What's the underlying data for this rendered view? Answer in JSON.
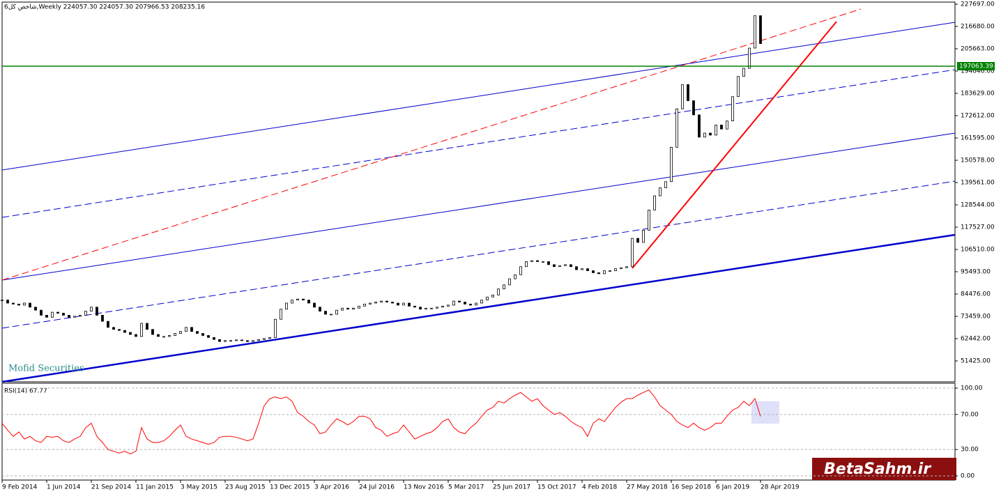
{
  "chart_data": [
    {
      "type": "candlestick",
      "title": "شاخص کل6,Weekly  224057.30 224057.30 207966.53 208235.16",
      "annotation": "Mofid Securities",
      "watermark": "BetaSahm.ir",
      "up_color": "#ffffff",
      "down_color": "#000000",
      "edge_color": "#000000",
      "hline": {
        "value": 197063.39,
        "label": "197063.39",
        "color": "#008000"
      },
      "categories": [
        "9 Feb 2014",
        null,
        null,
        null,
        null,
        null,
        null,
        null,
        "1 Jun 2014",
        null,
        null,
        null,
        null,
        null,
        null,
        null,
        "21 Sep 2014",
        null,
        null,
        null,
        null,
        null,
        null,
        null,
        "11 Jan 2015",
        null,
        null,
        null,
        null,
        null,
        null,
        null,
        "3 May 2015",
        null,
        null,
        null,
        null,
        null,
        null,
        null,
        "23 Aug 2015",
        null,
        null,
        null,
        null,
        null,
        null,
        null,
        "13 Dec 2015",
        null,
        null,
        null,
        null,
        null,
        null,
        null,
        "3 Apr 2016",
        null,
        null,
        null,
        null,
        null,
        null,
        null,
        "24 Jul 2016",
        null,
        null,
        null,
        null,
        null,
        null,
        null,
        "13 Nov 2016",
        null,
        null,
        null,
        null,
        null,
        null,
        null,
        "5 Mar 2017",
        null,
        null,
        null,
        null,
        null,
        null,
        null,
        "25 Jun 2017",
        null,
        null,
        null,
        null,
        null,
        null,
        null,
        "15 Oct 2017",
        null,
        null,
        null,
        null,
        null,
        null,
        null,
        "4 Feb 2018",
        null,
        null,
        null,
        null,
        null,
        null,
        null,
        "27 May 2018",
        null,
        null,
        null,
        null,
        null,
        null,
        null,
        "16 Sep 2018",
        null,
        null,
        null,
        null,
        null,
        null,
        null,
        "6 Jan 2019",
        null,
        null,
        null,
        null,
        null,
        null,
        null,
        "28 Apr 2019"
      ],
      "values": [
        81500,
        80000,
        79500,
        79000,
        80000,
        78000,
        76500,
        74000,
        73000,
        75500,
        75000,
        74000,
        73000,
        73500,
        74000,
        76000,
        78000,
        74000,
        71000,
        68000,
        67000,
        66500,
        65500,
        64500,
        63500,
        70000,
        67000,
        64500,
        63500,
        63500,
        64000,
        65000,
        66000,
        68000,
        66000,
        65000,
        64000,
        63000,
        62000,
        61000,
        61500,
        61500,
        61800,
        61500,
        61000,
        61500,
        62000,
        62500,
        63000,
        72000,
        77000,
        80000,
        81500,
        82000,
        81500,
        80000,
        78000,
        76000,
        74500,
        74500,
        76500,
        77500,
        77000,
        77500,
        78500,
        79500,
        80000,
        80500,
        81000,
        80500,
        80000,
        79000,
        80000,
        78500,
        78000,
        77000,
        77500,
        77500,
        78000,
        78500,
        79000,
        81000,
        80500,
        79500,
        79000,
        80000,
        81500,
        83000,
        84000,
        87000,
        89000,
        92000,
        94000,
        98000,
        100500,
        101000,
        100500,
        100500,
        99000,
        98000,
        98500,
        99000,
        98000,
        96500,
        97000,
        96000,
        95000,
        94500,
        96000,
        96000,
        97000,
        97500,
        98000,
        112000,
        110000,
        116000,
        126000,
        133000,
        137000,
        140000,
        157000,
        176000,
        188000,
        180000,
        173000,
        162000,
        164000,
        163000,
        168000,
        166000,
        170000,
        182000,
        192000,
        196000,
        206000,
        222000,
        208235.16
      ],
      "ylim": [
        41097,
        229763
      ],
      "yticks": [
        {
          "value": 227697,
          "label": "227697.00"
        },
        {
          "value": 216680,
          "label": "216680.00"
        },
        {
          "value": 205663,
          "label": "205663.00"
        },
        {
          "value": 194646,
          "label": "194646.00"
        },
        {
          "value": 183629,
          "label": "183629.00"
        },
        {
          "value": 172612,
          "label": "172612.00"
        },
        {
          "value": 161595,
          "label": "161595.00"
        },
        {
          "value": 150578,
          "label": "150578.00"
        },
        {
          "value": 139561,
          "label": "139561.00"
        },
        {
          "value": 128544,
          "label": "128544.00"
        },
        {
          "value": 117527,
          "label": "117527.00"
        },
        {
          "value": 106510,
          "label": "106510.00"
        },
        {
          "value": 95493,
          "label": "95493.00"
        },
        {
          "value": 84476,
          "label": "84476.00"
        },
        {
          "value": 73459,
          "label": "73459.00"
        },
        {
          "value": 62442,
          "label": "62442.00"
        },
        {
          "value": 51425,
          "label": "51425.00"
        }
      ],
      "grid": false
    },
    {
      "type": "line",
      "title": "RSI(14) 67.77",
      "color": "#ff0000",
      "values": [
        60,
        52,
        45,
        50,
        42,
        45,
        40,
        38,
        45,
        44,
        45,
        40,
        38,
        42,
        45,
        55,
        60,
        45,
        38,
        30,
        28,
        26,
        28,
        25,
        28,
        55,
        42,
        38,
        38,
        40,
        45,
        52,
        58,
        45,
        42,
        40,
        38,
        36,
        38,
        44,
        45,
        45,
        44,
        42,
        40,
        42,
        60,
        80,
        88,
        90,
        88,
        90,
        85,
        72,
        68,
        62,
        58,
        48,
        50,
        58,
        65,
        62,
        58,
        62,
        68,
        68,
        65,
        55,
        52,
        45,
        48,
        50,
        58,
        50,
        42,
        45,
        48,
        50,
        55,
        62,
        65,
        55,
        50,
        48,
        55,
        60,
        68,
        75,
        78,
        85,
        83,
        88,
        92,
        95,
        90,
        85,
        88,
        80,
        75,
        70,
        72,
        68,
        62,
        58,
        55,
        45,
        60,
        65,
        62,
        70,
        78,
        84,
        88,
        88,
        92,
        95,
        98,
        90,
        80,
        75,
        70,
        62,
        58,
        55,
        60,
        55,
        52,
        55,
        60,
        60,
        68,
        75,
        78,
        85,
        80,
        88,
        67.77
      ],
      "ylim": [
        -5.6,
        105.6
      ],
      "yticks": [
        {
          "value": 100,
          "label": "100.00"
        },
        {
          "value": 70,
          "label": "70.00"
        },
        {
          "value": 30,
          "label": "30.00"
        },
        {
          "value": 0,
          "label": "0.00"
        }
      ],
      "grid": true
    }
  ]
}
